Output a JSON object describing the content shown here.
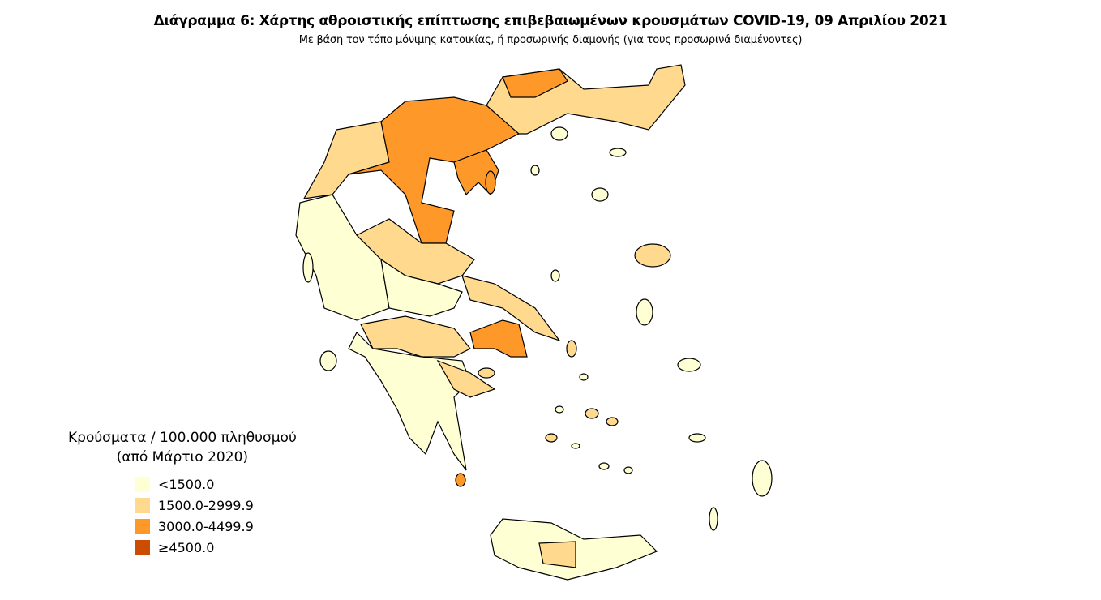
{
  "title": "Διάγραμμα 6: Χάρτης αθροιστικής επίπτωσης επιβεβαιωμένων κρουσμάτων COVID-19, 09 Απριλίου 2021",
  "subtitle": "Με βάση τον τόπο μόνιμης κατοικίας, ή προσωρινής διαμονής (για τους προσωρινά διαμένοντες)",
  "legend": {
    "title_line1": "Κρούσματα / 100.000 πληθυσμού",
    "title_line2": "(από Μάρτιο 2020)",
    "items": [
      {
        "label": "<1500.0",
        "color": "#ffffd4"
      },
      {
        "label": "1500.0-2999.9",
        "color": "#fed98e"
      },
      {
        "label": "3000.0-4499.9",
        "color": "#fe9929"
      },
      {
        "label": "≥4500.0",
        "color": "#cc4c02"
      }
    ]
  },
  "map": {
    "border_color": "#000000"
  }
}
